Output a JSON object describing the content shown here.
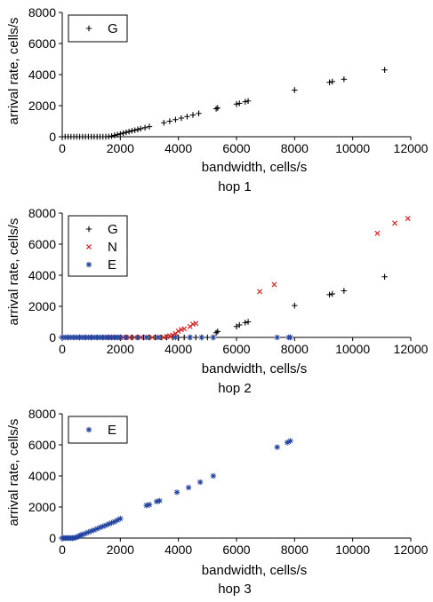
{
  "chart_data": [
    {
      "type": "scatter",
      "title": "hop 1",
      "xlabel": "bandwidth, cells/s",
      "ylabel": "arrival rate, cells/s",
      "xlim": [
        0,
        12000
      ],
      "ylim": [
        0,
        8000
      ],
      "xticks": [
        "0",
        "2000",
        "4000",
        "6000",
        "8000",
        "10000",
        "12000"
      ],
      "yticks": [
        "0",
        "2000",
        "4000",
        "6000",
        "8000"
      ],
      "legend_position": "top-left",
      "series": [
        {
          "name": "G",
          "marker": "plus",
          "color": "#000000",
          "points": [
            [
              0,
              0
            ],
            [
              100,
              0
            ],
            [
              200,
              0
            ],
            [
              300,
              0
            ],
            [
              400,
              0
            ],
            [
              500,
              0
            ],
            [
              600,
              0
            ],
            [
              700,
              0
            ],
            [
              800,
              0
            ],
            [
              900,
              0
            ],
            [
              1000,
              0
            ],
            [
              1100,
              0
            ],
            [
              1200,
              0
            ],
            [
              1300,
              0
            ],
            [
              1400,
              0
            ],
            [
              1500,
              0
            ],
            [
              1600,
              10
            ],
            [
              1700,
              40
            ],
            [
              1800,
              90
            ],
            [
              1900,
              130
            ],
            [
              2000,
              180
            ],
            [
              2100,
              230
            ],
            [
              2200,
              280
            ],
            [
              2300,
              330
            ],
            [
              2400,
              380
            ],
            [
              2500,
              420
            ],
            [
              2600,
              470
            ],
            [
              2700,
              520
            ],
            [
              2850,
              580
            ],
            [
              3000,
              650
            ],
            [
              3500,
              900
            ],
            [
              3700,
              1000
            ],
            [
              3900,
              1100
            ],
            [
              4100,
              1200
            ],
            [
              4300,
              1300
            ],
            [
              4500,
              1400
            ],
            [
              4700,
              1500
            ],
            [
              5300,
              1800
            ],
            [
              5350,
              1850
            ],
            [
              6000,
              2100
            ],
            [
              6100,
              2150
            ],
            [
              6300,
              2250
            ],
            [
              6400,
              2300
            ],
            [
              8000,
              3000
            ],
            [
              9200,
              3500
            ],
            [
              9300,
              3550
            ],
            [
              9700,
              3700
            ],
            [
              11100,
              4300
            ]
          ]
        }
      ]
    },
    {
      "type": "scatter",
      "title": "hop 2",
      "xlabel": "bandwidth, cells/s",
      "ylabel": "arrival rate, cells/s",
      "xlim": [
        0,
        12000
      ],
      "ylim": [
        0,
        8000
      ],
      "xticks": [
        "0",
        "2000",
        "4000",
        "6000",
        "8000",
        "10000",
        "12000"
      ],
      "yticks": [
        "0",
        "2000",
        "4000",
        "6000",
        "8000"
      ],
      "legend_position": "top-left",
      "series": [
        {
          "name": "G",
          "marker": "plus",
          "color": "#000000",
          "points": [
            [
              0,
              0
            ],
            [
              200,
              0
            ],
            [
              400,
              0
            ],
            [
              600,
              0
            ],
            [
              800,
              0
            ],
            [
              1000,
              0
            ],
            [
              1200,
              0
            ],
            [
              1400,
              0
            ],
            [
              1600,
              0
            ],
            [
              1800,
              0
            ],
            [
              2000,
              0
            ],
            [
              2200,
              0
            ],
            [
              2400,
              0
            ],
            [
              2600,
              0
            ],
            [
              2800,
              0
            ],
            [
              3000,
              0
            ],
            [
              3200,
              0
            ],
            [
              3400,
              0
            ],
            [
              3600,
              0
            ],
            [
              3800,
              0
            ],
            [
              4000,
              0
            ],
            [
              4200,
              0
            ],
            [
              4400,
              0
            ],
            [
              4600,
              0
            ],
            [
              4800,
              0
            ],
            [
              5000,
              0
            ],
            [
              5200,
              0
            ],
            [
              5300,
              300
            ],
            [
              5350,
              380
            ],
            [
              6000,
              700
            ],
            [
              6100,
              800
            ],
            [
              6300,
              950
            ],
            [
              6400,
              1000
            ],
            [
              8000,
              2050
            ],
            [
              9200,
              2750
            ],
            [
              9300,
              2800
            ],
            [
              9700,
              3000
            ],
            [
              11100,
              3900
            ]
          ]
        },
        {
          "name": "N",
          "marker": "cross",
          "color": "#d42020",
          "points": [
            [
              1600,
              0
            ],
            [
              1800,
              0
            ],
            [
              2000,
              0
            ],
            [
              2100,
              0
            ],
            [
              2200,
              0
            ],
            [
              2300,
              0
            ],
            [
              2500,
              0
            ],
            [
              2700,
              0
            ],
            [
              2900,
              0
            ],
            [
              3100,
              0
            ],
            [
              3300,
              0
            ],
            [
              3500,
              0
            ],
            [
              3600,
              50
            ],
            [
              3700,
              100
            ],
            [
              3800,
              150
            ],
            [
              3900,
              250
            ],
            [
              4000,
              400
            ],
            [
              4100,
              500
            ],
            [
              4200,
              550
            ],
            [
              4400,
              700
            ],
            [
              4500,
              850
            ],
            [
              4600,
              900
            ],
            [
              6800,
              2950
            ],
            [
              7300,
              3400
            ],
            [
              10850,
              6700
            ],
            [
              11450,
              7350
            ],
            [
              11900,
              7650
            ]
          ]
        },
        {
          "name": "E",
          "marker": "star",
          "color": "#2040a0",
          "points": [
            [
              0,
              0
            ],
            [
              100,
              0
            ],
            [
              200,
              0
            ],
            [
              300,
              0
            ],
            [
              400,
              0
            ],
            [
              500,
              0
            ],
            [
              600,
              0
            ],
            [
              700,
              0
            ],
            [
              800,
              0
            ],
            [
              900,
              0
            ],
            [
              1000,
              0
            ],
            [
              1100,
              0
            ],
            [
              1200,
              0
            ],
            [
              1300,
              0
            ],
            [
              1400,
              0
            ],
            [
              1500,
              0
            ],
            [
              1600,
              0
            ],
            [
              1700,
              0
            ],
            [
              1800,
              0
            ],
            [
              1900,
              0
            ],
            [
              2000,
              0
            ],
            [
              2200,
              0
            ],
            [
              2600,
              0
            ],
            [
              2900,
              0
            ],
            [
              3300,
              0
            ],
            [
              3900,
              0
            ],
            [
              4400,
              0
            ],
            [
              4800,
              0
            ],
            [
              5200,
              0
            ],
            [
              7400,
              0
            ],
            [
              7800,
              0
            ],
            [
              7850,
              0
            ]
          ]
        }
      ]
    },
    {
      "type": "scatter",
      "title": "hop 3",
      "xlabel": "bandwidth, cells/s",
      "ylabel": "arrival rate, cells/s",
      "xlim": [
        0,
        12000
      ],
      "ylim": [
        0,
        8000
      ],
      "xticks": [
        "0",
        "2000",
        "4000",
        "6000",
        "8000",
        "10000",
        "12000"
      ],
      "yticks": [
        "0",
        "2000",
        "4000",
        "6000",
        "8000"
      ],
      "legend_position": "top-left",
      "series": [
        {
          "name": "E",
          "marker": "star",
          "color": "#2040a0",
          "points": [
            [
              0,
              0
            ],
            [
              50,
              0
            ],
            [
              100,
              0
            ],
            [
              150,
              0
            ],
            [
              200,
              0
            ],
            [
              250,
              0
            ],
            [
              300,
              0
            ],
            [
              350,
              0
            ],
            [
              400,
              0
            ],
            [
              450,
              30
            ],
            [
              500,
              60
            ],
            [
              550,
              100
            ],
            [
              600,
              150
            ],
            [
              650,
              200
            ],
            [
              700,
              230
            ],
            [
              800,
              300
            ],
            [
              900,
              380
            ],
            [
              1000,
              450
            ],
            [
              1100,
              520
            ],
            [
              1200,
              600
            ],
            [
              1300,
              680
            ],
            [
              1400,
              750
            ],
            [
              1500,
              820
            ],
            [
              1600,
              900
            ],
            [
              1700,
              980
            ],
            [
              1800,
              1050
            ],
            [
              1900,
              1150
            ],
            [
              2000,
              1250
            ],
            [
              2900,
              2100
            ],
            [
              3000,
              2150
            ],
            [
              3250,
              2350
            ],
            [
              3350,
              2400
            ],
            [
              3950,
              2950
            ],
            [
              4350,
              3250
            ],
            [
              4750,
              3600
            ],
            [
              5200,
              4000
            ],
            [
              7400,
              5850
            ],
            [
              7750,
              6150
            ],
            [
              7850,
              6250
            ]
          ]
        }
      ]
    }
  ]
}
